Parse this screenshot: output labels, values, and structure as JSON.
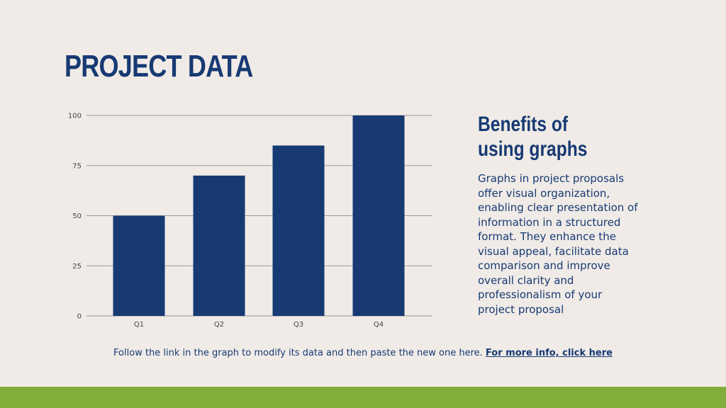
{
  "slide": {
    "title": "PROJECT DATA"
  },
  "sidebar": {
    "heading_line1": "Benefits of",
    "heading_line2": "using graphs",
    "body": "Graphs in project proposals offer visual organization, enabling clear presentation of information in a structured format. They enhance the visual appeal, facilitate data comparison and improve overall clarity and professionalism of your project proposal"
  },
  "footer": {
    "note": "Follow the link in the graph to modify its data and then paste the new one here. ",
    "link_label": "For more info, click here"
  },
  "colors": {
    "background": "#f0ebe7",
    "accent": "#173a73",
    "footer_band": "#82ad3b",
    "gridline": "#9a9a9a"
  },
  "chart_data": {
    "type": "bar",
    "categories": [
      "Q1",
      "Q2",
      "Q3",
      "Q4"
    ],
    "values": [
      50,
      70,
      85,
      100
    ],
    "yticks": [
      0,
      25,
      50,
      75,
      100
    ],
    "ylim": [
      0,
      100
    ],
    "grid": true,
    "legend": "none"
  }
}
